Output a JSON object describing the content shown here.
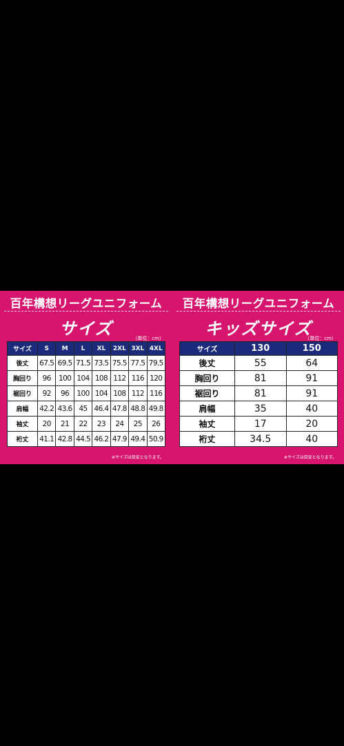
{
  "adult": {
    "title": "百年構想リーグユニフォーム",
    "subtitle": "サイズ",
    "unit": "（単位：cm）",
    "header": [
      "サイズ",
      "S",
      "M",
      "L",
      "XL",
      "2XL",
      "3XL",
      "4XL"
    ],
    "rows": [
      {
        "label": "後丈",
        "values": [
          "67.5",
          "69.5",
          "71.5",
          "73.5",
          "75.5",
          "77.5",
          "79.5"
        ]
      },
      {
        "label": "胸回り",
        "values": [
          "96",
          "100",
          "104",
          "108",
          "112",
          "116",
          "120"
        ]
      },
      {
        "label": "裾回り",
        "values": [
          "92",
          "96",
          "100",
          "104",
          "108",
          "112",
          "116"
        ]
      },
      {
        "label": "肩幅",
        "values": [
          "42.2",
          "43.6",
          "45",
          "46.4",
          "47.8",
          "48.8",
          "49.8"
        ]
      },
      {
        "label": "袖丈",
        "values": [
          "20",
          "21",
          "22",
          "23",
          "24",
          "25",
          "26"
        ]
      },
      {
        "label": "裄丈",
        "values": [
          "41.1",
          "42.8",
          "44.5",
          "46.2",
          "47.9",
          "49.4",
          "50.9"
        ]
      }
    ],
    "note": "※サイズは目安となります。"
  },
  "kids": {
    "title": "百年構想リーグユニフォーム",
    "subtitle": "キッズサイズ",
    "unit": "（単位：cm）",
    "header": [
      "サイズ",
      "130",
      "150"
    ],
    "rows": [
      {
        "label": "後丈",
        "values": [
          "55",
          "64"
        ]
      },
      {
        "label": "胸回り",
        "values": [
          "81",
          "91"
        ]
      },
      {
        "label": "裾回り",
        "values": [
          "81",
          "91"
        ]
      },
      {
        "label": "肩幅",
        "values": [
          "35",
          "40"
        ]
      },
      {
        "label": "袖丈",
        "values": [
          "17",
          "20"
        ]
      },
      {
        "label": "裄丈",
        "values": [
          "34.5",
          "40"
        ]
      }
    ],
    "note": "※サイズは目安となります。"
  },
  "colors": {
    "banner": "#d8156e",
    "header": "#1b2a7a",
    "background": "#000000"
  }
}
